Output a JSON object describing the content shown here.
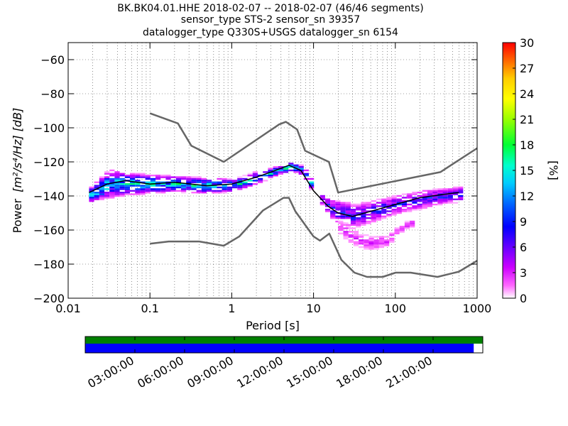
{
  "chart_data": {
    "type": "heatmap",
    "title_lines": [
      "BK.BK04.01.HHE   2018-02-07 -- 2018-02-07  (46/46 segments)",
      "sensor_type STS-2 sensor_sn 39357",
      "datalogger_type Q330S+USGS datalogger_sn 6154"
    ],
    "xlabel": "Period [s]",
    "ylabel_prefix": "Power",
    "ylabel_units": "[m²/s⁴/Hz] [dB]",
    "x_scale": "log",
    "xlim": [
      0.01,
      1000
    ],
    "ylim": [
      -200,
      -50
    ],
    "x_ticks": [
      0.01,
      0.1,
      1,
      10,
      100,
      1000
    ],
    "x_tick_labels": [
      "0.01",
      "0.1",
      "1",
      "10",
      "100",
      "1000"
    ],
    "y_ticks": [
      -200,
      -180,
      -160,
      -140,
      -120,
      -100,
      -80,
      -60
    ],
    "y_tick_labels": [
      "−200",
      "−180",
      "−160",
      "−140",
      "−120",
      "−100",
      "−80",
      "−60"
    ],
    "grid": "dotted",
    "colorbar": {
      "label": "[%]",
      "range": [
        0,
        30
      ],
      "ticks": [
        "0",
        "3",
        "6",
        "9",
        "12",
        "15",
        "18",
        "21",
        "24",
        "27",
        "30"
      ]
    },
    "mode_curve": {
      "periods": [
        0.018,
        0.03,
        0.05,
        0.1,
        0.2,
        0.5,
        1,
        2,
        3,
        5,
        7,
        10,
        15,
        20,
        30,
        50,
        100,
        200,
        400,
        600
      ],
      "db": [
        -138,
        -133,
        -131,
        -133,
        -132,
        -134,
        -133,
        -129,
        -126,
        -122,
        -125,
        -137,
        -146,
        -150,
        -152,
        -149,
        -145,
        -141,
        -139,
        -138
      ]
    },
    "noise_model_high": {
      "periods": [
        0.1,
        0.22,
        0.32,
        0.8,
        3.8,
        4.6,
        6.3,
        7.9,
        15.4,
        20,
        354.8,
        1000
      ],
      "db": [
        -91.5,
        -97.4,
        -110.5,
        -120,
        -98,
        -96.5,
        -101,
        -113.5,
        -120,
        -138,
        -126,
        -112
      ]
    },
    "noise_model_low": {
      "periods": [
        0.1,
        0.17,
        0.4,
        0.8,
        1.24,
        2.4,
        4.3,
        5,
        6,
        10,
        12,
        15.6,
        21.9,
        31.6,
        45,
        70,
        101,
        154,
        328,
        600,
        1000
      ],
      "db": [
        -168,
        -166.7,
        -166.7,
        -169.2,
        -163.7,
        -148.6,
        -141.1,
        -141.1,
        -149,
        -163.8,
        -166.2,
        -162.1,
        -177.5,
        -185,
        -187.5,
        -187.5,
        -185,
        -185,
        -187.5,
        -184.4,
        -178
      ]
    },
    "density_bands": [
      {
        "periods": [
          0.018,
          0.03,
          0.05,
          0.1,
          0.2,
          0.5,
          1,
          2,
          3,
          5,
          7,
          10
        ],
        "center_db": [
          -139,
          -133,
          -133,
          -133,
          -133,
          -134,
          -134,
          -129,
          -126,
          -123,
          -125,
          -137
        ],
        "half_width_db": [
          5,
          9,
          7,
          6,
          5,
          5,
          4,
          4,
          3,
          3,
          3,
          4
        ],
        "peak_pct": 14
      },
      {
        "periods": [
          12,
          15,
          20,
          30,
          50,
          100,
          200,
          400,
          600
        ],
        "center_db": [
          -142,
          -147,
          -150,
          -152,
          -149,
          -145,
          -142,
          -140,
          -139
        ],
        "half_width_db": [
          4,
          6,
          8,
          8,
          7,
          6,
          6,
          5,
          5
        ],
        "peak_pct": 8
      },
      {
        "periods": [
          20,
          30,
          50,
          80,
          100,
          150
        ],
        "center_db": [
          -158,
          -165,
          -168,
          -166,
          -160,
          -156
        ],
        "half_width_db": [
          6,
          6,
          5,
          4,
          3,
          3
        ],
        "peak_pct": 3
      }
    ]
  },
  "timeline": {
    "tick_labels": [
      "03:00:00",
      "06:00:00",
      "09:00:00",
      "12:00:00",
      "15:00:00",
      "18:00:00",
      "21:00:00"
    ],
    "tick_hours": [
      3,
      6,
      9,
      12,
      15,
      18,
      21
    ],
    "start_hour": 0,
    "end_hour": 24,
    "data_end_hour": 23.45,
    "top_bar_color": "#008000",
    "bottom_bar_color": "#0000ff"
  }
}
